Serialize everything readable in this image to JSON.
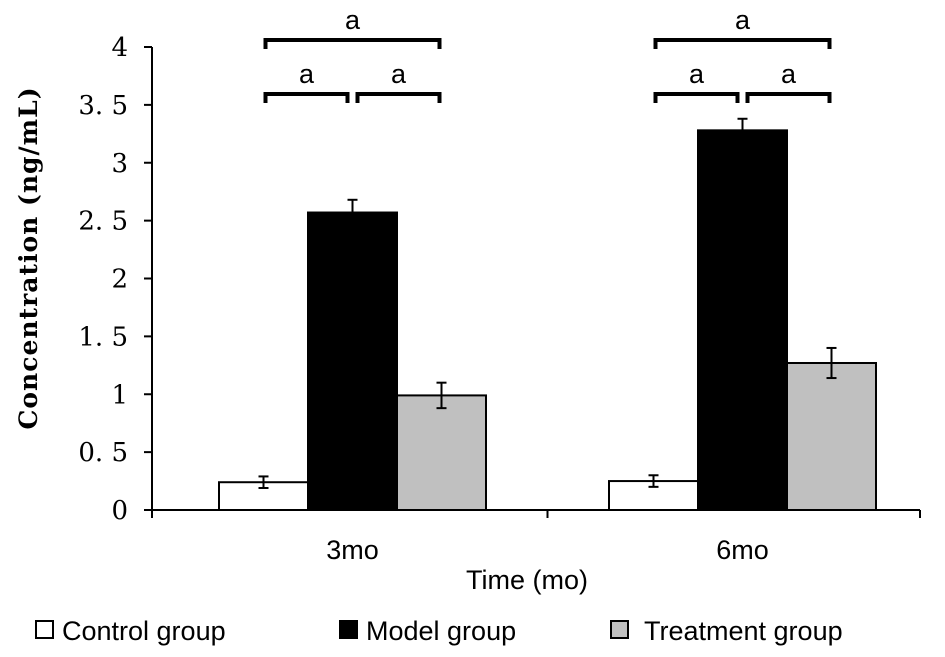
{
  "chart_data": {
    "type": "bar",
    "categories": [
      "3mo",
      "6mo"
    ],
    "series": [
      {
        "name": "Control group",
        "values": [
          0.24,
          0.25
        ],
        "errors": [
          0.05,
          0.05
        ],
        "color": "#ffffff"
      },
      {
        "name": "Model group",
        "values": [
          2.57,
          3.28
        ],
        "errors": [
          0.11,
          0.1
        ],
        "color": "#000000"
      },
      {
        "name": "Treatment group",
        "values": [
          0.99,
          1.27
        ],
        "errors": [
          0.11,
          0.13
        ],
        "color": "#c0c0c0"
      }
    ],
    "xlabel": "Time (mo)",
    "ylabel": "Concentration (ng/mL)",
    "ylim": [
      0,
      4
    ],
    "yticks": [
      "0",
      "0. 5",
      "1",
      "1. 5",
      "2",
      "2. 5",
      "3",
      "3. 5",
      "4"
    ],
    "grid": false,
    "legend_position": "bottom",
    "significance": [
      {
        "category": "3mo",
        "from_series": 0,
        "to_series": 2,
        "label": "a",
        "level": "top"
      },
      {
        "category": "3mo",
        "from_series": 0,
        "to_series": 1,
        "label": "a",
        "level": "lower"
      },
      {
        "category": "3mo",
        "from_series": 1,
        "to_series": 2,
        "label": "a",
        "level": "lower"
      },
      {
        "category": "6mo",
        "from_series": 0,
        "to_series": 2,
        "label": "a",
        "level": "top"
      },
      {
        "category": "6mo",
        "from_series": 0,
        "to_series": 1,
        "label": "a",
        "level": "lower"
      },
      {
        "category": "6mo",
        "from_series": 1,
        "to_series": 2,
        "label": "a",
        "level": "lower"
      }
    ]
  }
}
